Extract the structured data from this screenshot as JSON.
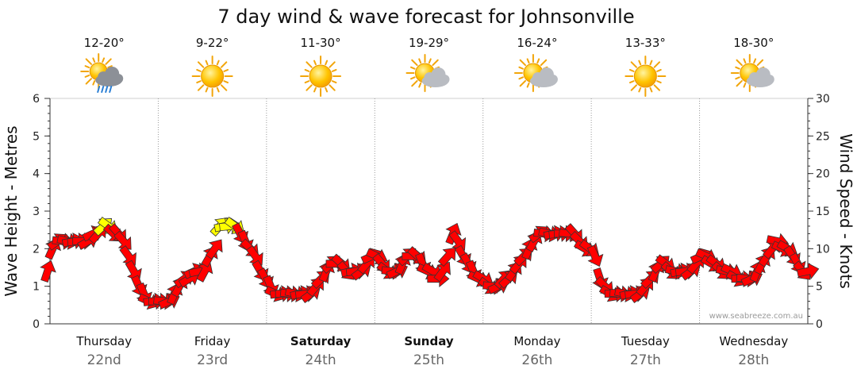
{
  "chart_data": {
    "type": "forecast",
    "title": "7 day wind & wave forecast for Johnsonville",
    "left_axis_label": "Wave Height - Metres",
    "right_axis_label": "Wind Speed - Knots",
    "left_axis": {
      "min": 0,
      "max": 6,
      "ticks": [
        "0",
        "1",
        "2",
        "3",
        "4",
        "5",
        "6"
      ]
    },
    "right_axis": {
      "min": 0,
      "max": 30,
      "ticks": [
        "0",
        "5",
        "10",
        "15",
        "20",
        "25",
        "30"
      ]
    },
    "grid": true,
    "credit": "www.seabreeze.com.au",
    "days": [
      {
        "name": "Thursday",
        "date": "22nd",
        "temp": "12-20°",
        "weather": "sun-cloud-rain-icon",
        "weekend": false
      },
      {
        "name": "Friday",
        "date": "23rd",
        "temp": "9-22°",
        "weather": "sun-icon",
        "weekend": false
      },
      {
        "name": "Saturday",
        "date": "24th",
        "temp": "11-30°",
        "weather": "sun-icon",
        "weekend": true
      },
      {
        "name": "Sunday",
        "date": "25th",
        "temp": "19-29°",
        "weather": "sun-cloud-icon",
        "weekend": true
      },
      {
        "name": "Monday",
        "date": "26th",
        "temp": "16-24°",
        "weather": "sun-cloud-icon",
        "weekend": false
      },
      {
        "name": "Tuesday",
        "date": "27th",
        "temp": "13-33°",
        "weather": "sun-icon",
        "weekend": false
      },
      {
        "name": "Wednesday",
        "date": "28th",
        "temp": "18-30°",
        "weather": "sun-cloud-icon",
        "weekend": false
      }
    ],
    "wind_knots": [
      7,
      10,
      11,
      11,
      11,
      11,
      11,
      11,
      11,
      12,
      12,
      13,
      13,
      12,
      12,
      11,
      9,
      7,
      5,
      4,
      3,
      3,
      3,
      3,
      3,
      4,
      5,
      6,
      6,
      7,
      7,
      7,
      9,
      10,
      13,
      13,
      13,
      13,
      12,
      11,
      10,
      9,
      7,
      6,
      5,
      4,
      4,
      4,
      4,
      4,
      4,
      4,
      4,
      5,
      6,
      7,
      8,
      8,
      8,
      7,
      7,
      7,
      7,
      8,
      9,
      9,
      8,
      7,
      7,
      7,
      8,
      9,
      9,
      9,
      8,
      7,
      7,
      6,
      7,
      9,
      12,
      11,
      9,
      8,
      7,
      6,
      6,
      5,
      5,
      5,
      6,
      6,
      7,
      8,
      9,
      10,
      11,
      12,
      12,
      12,
      12,
      12,
      12,
      12,
      12,
      11,
      10,
      10,
      9,
      6,
      5,
      4,
      4,
      4,
      4,
      4,
      4,
      4,
      5,
      6,
      7,
      8,
      8,
      7,
      7,
      7,
      7,
      7,
      8,
      9,
      9,
      8,
      8,
      7,
      7,
      7,
      6,
      6,
      6,
      6,
      7,
      8,
      9,
      10,
      11,
      10,
      10,
      9,
      8,
      7,
      7
    ],
    "wind_color_key": {
      "low": "#ffff00",
      "high": "#ff0000"
    }
  }
}
